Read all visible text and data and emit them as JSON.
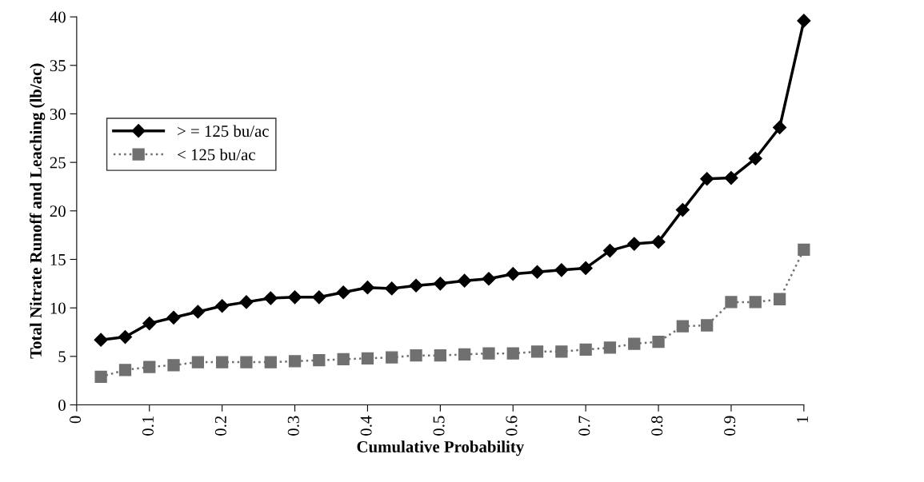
{
  "chart_data": {
    "type": "line",
    "xlabel": "Cumulative Probability",
    "ylabel": "Total Nitrate Runoff and Leaching (lb/ac)",
    "x": [
      0.0333,
      0.0667,
      0.1,
      0.1333,
      0.1667,
      0.2,
      0.2333,
      0.2667,
      0.3,
      0.3333,
      0.3667,
      0.4,
      0.4333,
      0.4667,
      0.5,
      0.5333,
      0.5667,
      0.6,
      0.6333,
      0.6667,
      0.7,
      0.7333,
      0.7667,
      0.8,
      0.8333,
      0.8667,
      0.9,
      0.9333,
      0.9667,
      1
    ],
    "series": [
      {
        "name": "> = 125 bu/ac",
        "color": "#000000",
        "marker": "diamond",
        "line_style": "solid",
        "values": [
          6.7,
          7.0,
          8.4,
          9.0,
          9.6,
          10.2,
          10.6,
          11.0,
          11.1,
          11.1,
          11.6,
          12.1,
          12.0,
          12.3,
          12.5,
          12.8,
          13.0,
          13.5,
          13.7,
          13.9,
          14.1,
          15.9,
          16.6,
          16.8,
          20.1,
          23.3,
          23.4,
          25.4,
          28.6,
          39.6
        ]
      },
      {
        "name": "< 125 bu/ac",
        "color": "#707070",
        "marker": "square",
        "line_style": "dotted",
        "values": [
          2.9,
          3.6,
          3.9,
          4.1,
          4.4,
          4.4,
          4.4,
          4.4,
          4.5,
          4.6,
          4.7,
          4.8,
          4.9,
          5.1,
          5.1,
          5.2,
          5.3,
          5.3,
          5.5,
          5.5,
          5.7,
          5.9,
          6.3,
          6.5,
          8.1,
          8.2,
          10.6,
          10.6,
          10.9,
          16.0
        ]
      }
    ],
    "xlim": [
      0,
      1
    ],
    "xticks": [
      0,
      0.1,
      0.2,
      0.3,
      0.4,
      0.5,
      0.6,
      0.7,
      0.8,
      0.9,
      1
    ],
    "ylim": [
      0,
      40
    ],
    "yticks": [
      0,
      5,
      10,
      15,
      20,
      25,
      30,
      35,
      40
    ],
    "grid": false,
    "legend": "top left"
  }
}
